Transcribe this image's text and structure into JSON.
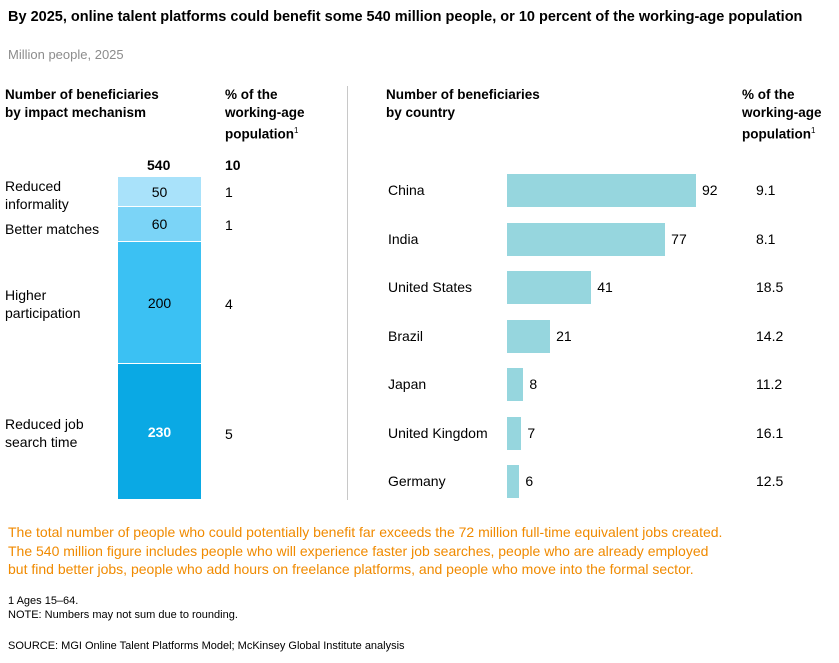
{
  "title": "By 2025, online talent platforms could benefit some 540 million people, or 10 percent of the working-age population",
  "subtitle": "Million people, 2025",
  "left_panel": {
    "header_line1": "Number of beneficiaries",
    "header_line2": "by impact mechanism",
    "pct_header_line1": "% of the",
    "pct_header_line2": "working-age",
    "pct_header_line3": "population",
    "footnote_marker": "1",
    "total_value": "540",
    "total_pct": "10",
    "segments": [
      {
        "label_line1": "Reduced",
        "label_line2": "informality",
        "value": "50",
        "pct": "1",
        "color": "#a9e2fa"
      },
      {
        "label_line1": "Better matches",
        "label_line2": "",
        "value": "60",
        "pct": "1",
        "color": "#7bd4f7"
      },
      {
        "label_line1": "Higher",
        "label_line2": "participation",
        "value": "200",
        "pct": "4",
        "color": "#3bc1f3"
      },
      {
        "label_line1": "Reduced job",
        "label_line2": "search time",
        "value": "230",
        "pct": "5",
        "color": "#0aa9e4"
      }
    ]
  },
  "right_panel": {
    "header_line1": "Number of beneficiaries",
    "header_line2": "by country",
    "pct_header_line1": "% of the",
    "pct_header_line2": "working-age",
    "pct_header_line3": "population",
    "footnote_marker": "1",
    "bar_color": "#96d6de"
  },
  "chart_data": [
    {
      "type": "bar",
      "stacked": true,
      "title": "Number of beneficiaries by impact mechanism",
      "unit": "Million people, 2025",
      "categories": [
        "Reduced informality",
        "Better matches",
        "Higher participation",
        "Reduced job search time"
      ],
      "values": [
        50,
        60,
        200,
        230
      ],
      "pct_of_working_age_population": [
        1,
        1,
        4,
        5
      ],
      "total": 540,
      "total_pct": 10
    },
    {
      "type": "bar",
      "orientation": "horizontal",
      "title": "Number of beneficiaries by country",
      "unit": "Million people, 2025",
      "categories": [
        "China",
        "India",
        "United States",
        "Brazil",
        "Japan",
        "United Kingdom",
        "Germany"
      ],
      "values": [
        92,
        77,
        41,
        21,
        8,
        7,
        6
      ],
      "pct_of_working_age_population": [
        "9.1",
        "8.1",
        "18.5",
        "14.2",
        "11.2",
        "16.1",
        "12.5"
      ]
    }
  ],
  "note": {
    "line1": "The total number of people who could potentially benefit far exceeds the 72 million full-time equivalent jobs created.",
    "line2": "The 540 million figure includes people who will experience faster job searches, people who are already employed",
    "line3": "but find better jobs, people who add hours on freelance platforms, and people who move into the formal sector."
  },
  "footnotes": {
    "fn1": "1  Ages 15–64.",
    "note": "NOTE: Numbers may not sum due to rounding.",
    "source": "SOURCE:  MGI Online Talent Platforms Model; McKinsey Global Institute analysis"
  }
}
